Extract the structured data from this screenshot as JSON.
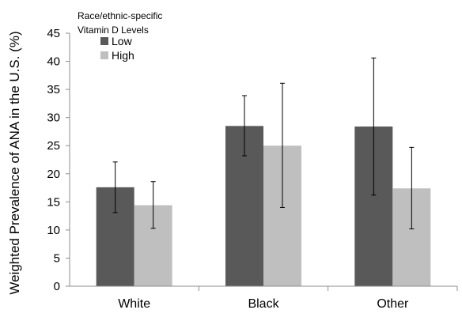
{
  "chart_data": {
    "type": "bar",
    "title": "",
    "xlabel": "",
    "ylabel": "Weighted Prevalence of ANA in the U.S. (%)",
    "ylim": [
      0,
      45
    ],
    "yticks": [
      "0",
      "5",
      "10",
      "15",
      "20",
      "25",
      "30",
      "35",
      "40",
      "45"
    ],
    "grid": false,
    "legend": {
      "title_lines": [
        "Race/ethnic-specific",
        "Vitamin D Levels"
      ],
      "position": "top-left"
    },
    "categories": [
      "White",
      "Black",
      "Other"
    ],
    "series": [
      {
        "name": "Low",
        "color": "#595959",
        "values": [
          17.6,
          28.5,
          28.4
        ],
        "error_low": [
          13.1,
          23.2,
          16.2
        ],
        "error_high": [
          22.1,
          33.9,
          40.6
        ]
      },
      {
        "name": "High",
        "color": "#bfbfbf",
        "values": [
          14.4,
          25.0,
          17.4
        ],
        "error_low": [
          10.3,
          14.0,
          10.2
        ],
        "error_high": [
          18.6,
          36.1,
          24.7
        ]
      }
    ]
  }
}
